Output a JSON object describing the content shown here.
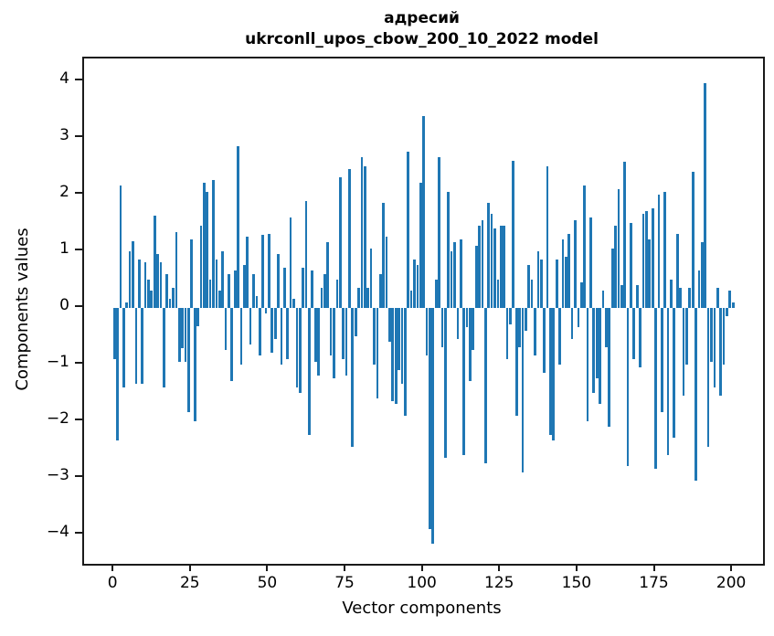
{
  "title_line1": "адресий",
  "title_line2": "ukrconll_upos_cbow_200_10_2022 model",
  "chart_data": {
    "type": "bar",
    "title": "адресий — ukrconll_upos_cbow_200_10_2022 model",
    "xlabel": "Vector components",
    "ylabel": "Components values",
    "bar_color": "#1f77b4",
    "grid": false,
    "legend": null,
    "x_start": 0,
    "xlim": [
      -9.8,
      209.7
    ],
    "ylim": [
      -4.52,
      4.4
    ],
    "xticks": [
      0,
      25,
      50,
      75,
      100,
      125,
      150,
      175,
      200
    ],
    "yticks": [
      4,
      3,
      2,
      1,
      0,
      -1,
      -2,
      -3,
      -4
    ],
    "ytick_labels": [
      "4",
      "3",
      "2",
      "1",
      "0",
      "−1",
      "−2",
      "−3",
      "−4"
    ],
    "values": [
      -0.9,
      -2.35,
      2.16,
      -1.4,
      0.1,
      1.0,
      1.18,
      -1.35,
      0.85,
      -1.35,
      0.8,
      0.5,
      0.3,
      1.63,
      0.95,
      0.8,
      -1.4,
      0.6,
      0.15,
      0.35,
      1.33,
      -0.95,
      -0.72,
      -0.95,
      -1.85,
      1.2,
      -2.0,
      -0.32,
      1.45,
      2.2,
      2.05,
      0.5,
      2.25,
      0.85,
      0.3,
      1.0,
      -0.75,
      0.6,
      -1.3,
      0.65,
      2.85,
      -1.0,
      0.75,
      1.25,
      -0.65,
      0.6,
      0.2,
      -0.85,
      1.28,
      -0.1,
      1.3,
      -0.8,
      -0.55,
      0.95,
      -1.0,
      0.7,
      -0.9,
      1.6,
      0.15,
      -1.4,
      -1.5,
      0.7,
      1.88,
      -2.25,
      0.65,
      -0.95,
      -1.2,
      0.35,
      0.6,
      1.15,
      -0.85,
      -1.25,
      0.5,
      2.3,
      -0.9,
      -1.2,
      2.45,
      -2.45,
      -0.5,
      0.35,
      2.65,
      2.5,
      0.35,
      1.05,
      -1.0,
      -1.6,
      0.6,
      1.85,
      1.25,
      -0.6,
      -1.65,
      -1.7,
      -1.1,
      -1.35,
      -1.9,
      2.75,
      0.3,
      0.85,
      0.75,
      2.2,
      3.38,
      -0.85,
      -3.9,
      -4.17,
      0.5,
      2.65,
      -0.7,
      -2.65,
      2.05,
      1.0,
      1.15,
      -0.55,
      1.2,
      -2.6,
      -0.35,
      -1.3,
      -0.75,
      1.1,
      1.45,
      1.55,
      -2.75,
      1.85,
      1.65,
      1.4,
      0.5,
      1.45,
      1.45,
      -0.9,
      -0.3,
      2.6,
      -1.9,
      -0.7,
      -2.9,
      -0.4,
      0.75,
      0.5,
      -0.85,
      1.0,
      0.85,
      -1.15,
      2.5,
      -2.25,
      -2.35,
      0.85,
      -1.0,
      1.2,
      0.9,
      1.3,
      -0.55,
      1.55,
      -0.35,
      0.45,
      2.15,
      -2.0,
      1.6,
      -1.5,
      -1.25,
      -1.7,
      0.3,
      -0.7,
      -2.1,
      1.05,
      1.45,
      2.1,
      0.4,
      2.57,
      -2.8,
      1.5,
      -0.9,
      0.4,
      -1.05,
      1.65,
      1.7,
      1.2,
      1.75,
      -2.85,
      2.0,
      -1.85,
      2.05,
      -2.6,
      0.5,
      -2.3,
      1.3,
      0.35,
      -1.55,
      -1.0,
      0.35,
      2.4,
      -3.05,
      0.65,
      1.15,
      3.97,
      -2.45,
      -0.95,
      -1.4,
      0.35,
      -1.55,
      -1.0,
      -0.15,
      0.3,
      0.1
    ]
  }
}
